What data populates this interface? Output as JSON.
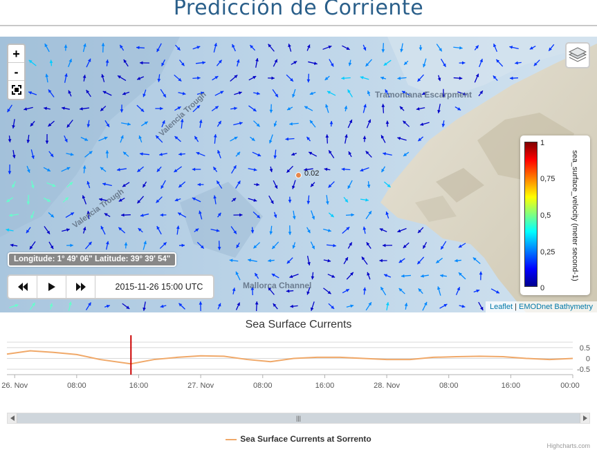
{
  "page": {
    "title": "Predicción de Corriente"
  },
  "map": {
    "zoom_in": "+",
    "zoom_out": "-",
    "labels": {
      "tramontana": "Tramontana Escarpment",
      "valencia1": "Valencia Trough",
      "valencia2": "Valencia Trough",
      "mallorca": "Mallorca Channel"
    },
    "marker_value": "0.02",
    "coords": "Longitude: 1° 49' 06\" Latitude: 39° 39' 54\"",
    "time": "2015-11-26 15:00 UTC",
    "legend": {
      "ticks": [
        "1",
        "0,75",
        "0,5",
        "0,25",
        "0"
      ],
      "title": "sea_surface_velocity (meter second-1)"
    },
    "attribution": {
      "leaflet": "Leaflet",
      "sep": " | ",
      "emodnet": "EMODnet Bathymetry"
    }
  },
  "chart_data": {
    "type": "line",
    "title": "Sea Surface Currents",
    "x_tick_labels": [
      "26. Nov",
      "08:00",
      "16:00",
      "27. Nov",
      "08:00",
      "16:00",
      "28. Nov",
      "08:00",
      "16:00",
      "00:00"
    ],
    "y_tick_labels": [
      "0.5",
      "0",
      "-0.5"
    ],
    "ylim": [
      -0.75,
      0.75
    ],
    "series": [
      {
        "name": "Sea Surface Currents at Sorrento",
        "x_hours": [
          -1,
          2,
          5,
          8,
          11,
          15,
          18,
          21,
          24,
          27,
          30,
          33,
          36,
          39,
          42,
          45,
          48,
          51,
          54,
          57,
          60,
          63,
          66,
          69,
          72
        ],
        "values": [
          0.2,
          0.35,
          0.28,
          0.18,
          -0.05,
          -0.25,
          -0.05,
          0.05,
          0.12,
          0.1,
          -0.05,
          -0.15,
          0.0,
          0.05,
          0.05,
          0.0,
          -0.05,
          -0.05,
          0.05,
          0.08,
          0.1,
          0.08,
          0.0,
          -0.05,
          0.0
        ]
      }
    ],
    "current_time_hours": 15,
    "legend_placement": "bottom"
  },
  "chart": {
    "scroll_thumb": "|||",
    "credits": "Highcharts.com"
  },
  "colors": {
    "arrow_low": "#0000cc",
    "arrow_mid": "#00ccff",
    "series": "#f0a868",
    "time_marker": "#cc0000"
  }
}
